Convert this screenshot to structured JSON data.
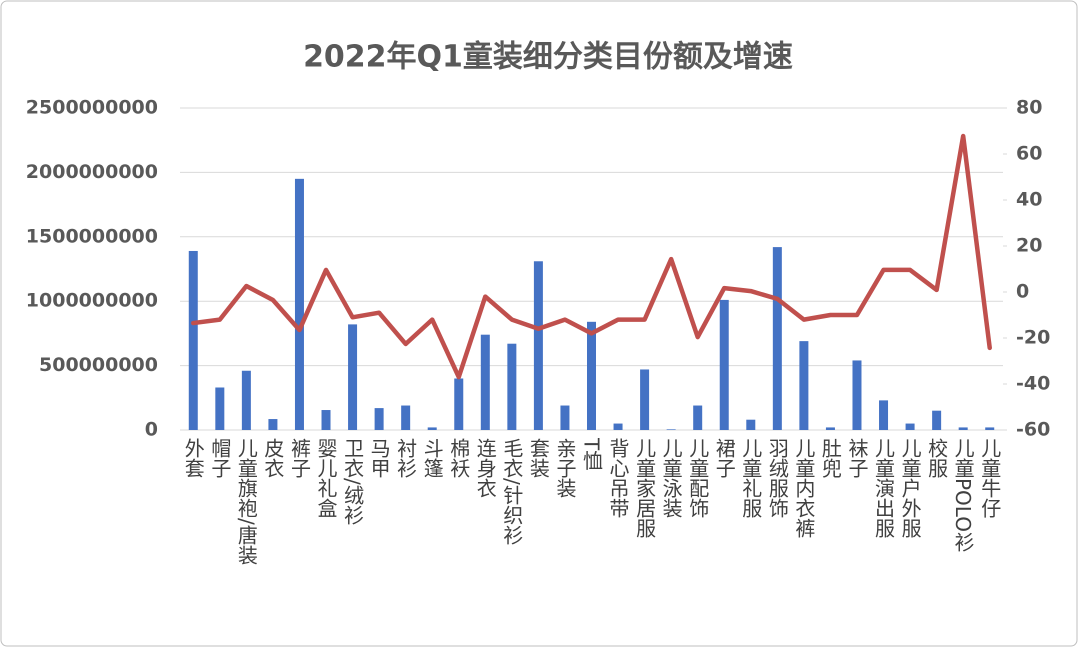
{
  "chart_data": {
    "type": "bar_line",
    "title": "2022年Q1童装细分类目份额及增速",
    "categories": [
      "外套",
      "帽子",
      "儿童旗袍/唐装",
      "皮衣",
      "裤子",
      "婴儿礼盒",
      "卫衣/绒衫",
      "马甲",
      "衬衫",
      "斗篷",
      "棉袄",
      "连身衣",
      "毛衣/针织衫",
      "套装",
      "亲子装",
      "T恤",
      "背心吊带",
      "儿童家居服",
      "儿童泳装",
      "儿童配饰",
      "裙子",
      "儿童礼服",
      "羽绒服饰",
      "儿童内衣裤",
      "肚兜",
      "袜子",
      "儿童演出服",
      "儿童户外服",
      "校服",
      "儿童POLO衫",
      "儿童牛仔"
    ],
    "series": [
      {
        "type": "bar",
        "color": "#4472c4",
        "values": [
          1390000000,
          330000000,
          460000000,
          85000000,
          1950000000,
          155000000,
          820000000,
          170000000,
          190000000,
          20000000,
          400000000,
          740000000,
          670000000,
          1310000000,
          190000000,
          840000000,
          50000000,
          470000000,
          5000000,
          190000000,
          1010000000,
          80000000,
          1420000000,
          690000000,
          20000000,
          540000000,
          230000000,
          50000000,
          150000000,
          20000000,
          20000000
        ]
      },
      {
        "type": "line",
        "axis": "y2",
        "color": "#c0504d",
        "values": [
          -13.5,
          -12,
          2.6,
          -3.5,
          -16.5,
          9.6,
          -11,
          -9,
          -22.6,
          -12,
          -37,
          -2,
          -12,
          -16,
          -12,
          -18,
          -12,
          -12,
          14.3,
          -19.6,
          1.7,
          0.4,
          -3,
          -12,
          -10,
          -10,
          9.6,
          9.6,
          0.9,
          67.8,
          -24.3
        ]
      }
    ],
    "ylim": [
      0,
      2500000000
    ],
    "yticks": [
      0,
      500000000,
      1000000000,
      1500000000,
      2000000000,
      2500000000
    ],
    "y2lim": [
      -60,
      80
    ],
    "y2ticks": [
      -60,
      -40,
      -20,
      0,
      20,
      40,
      60,
      80
    ],
    "grid": true
  }
}
